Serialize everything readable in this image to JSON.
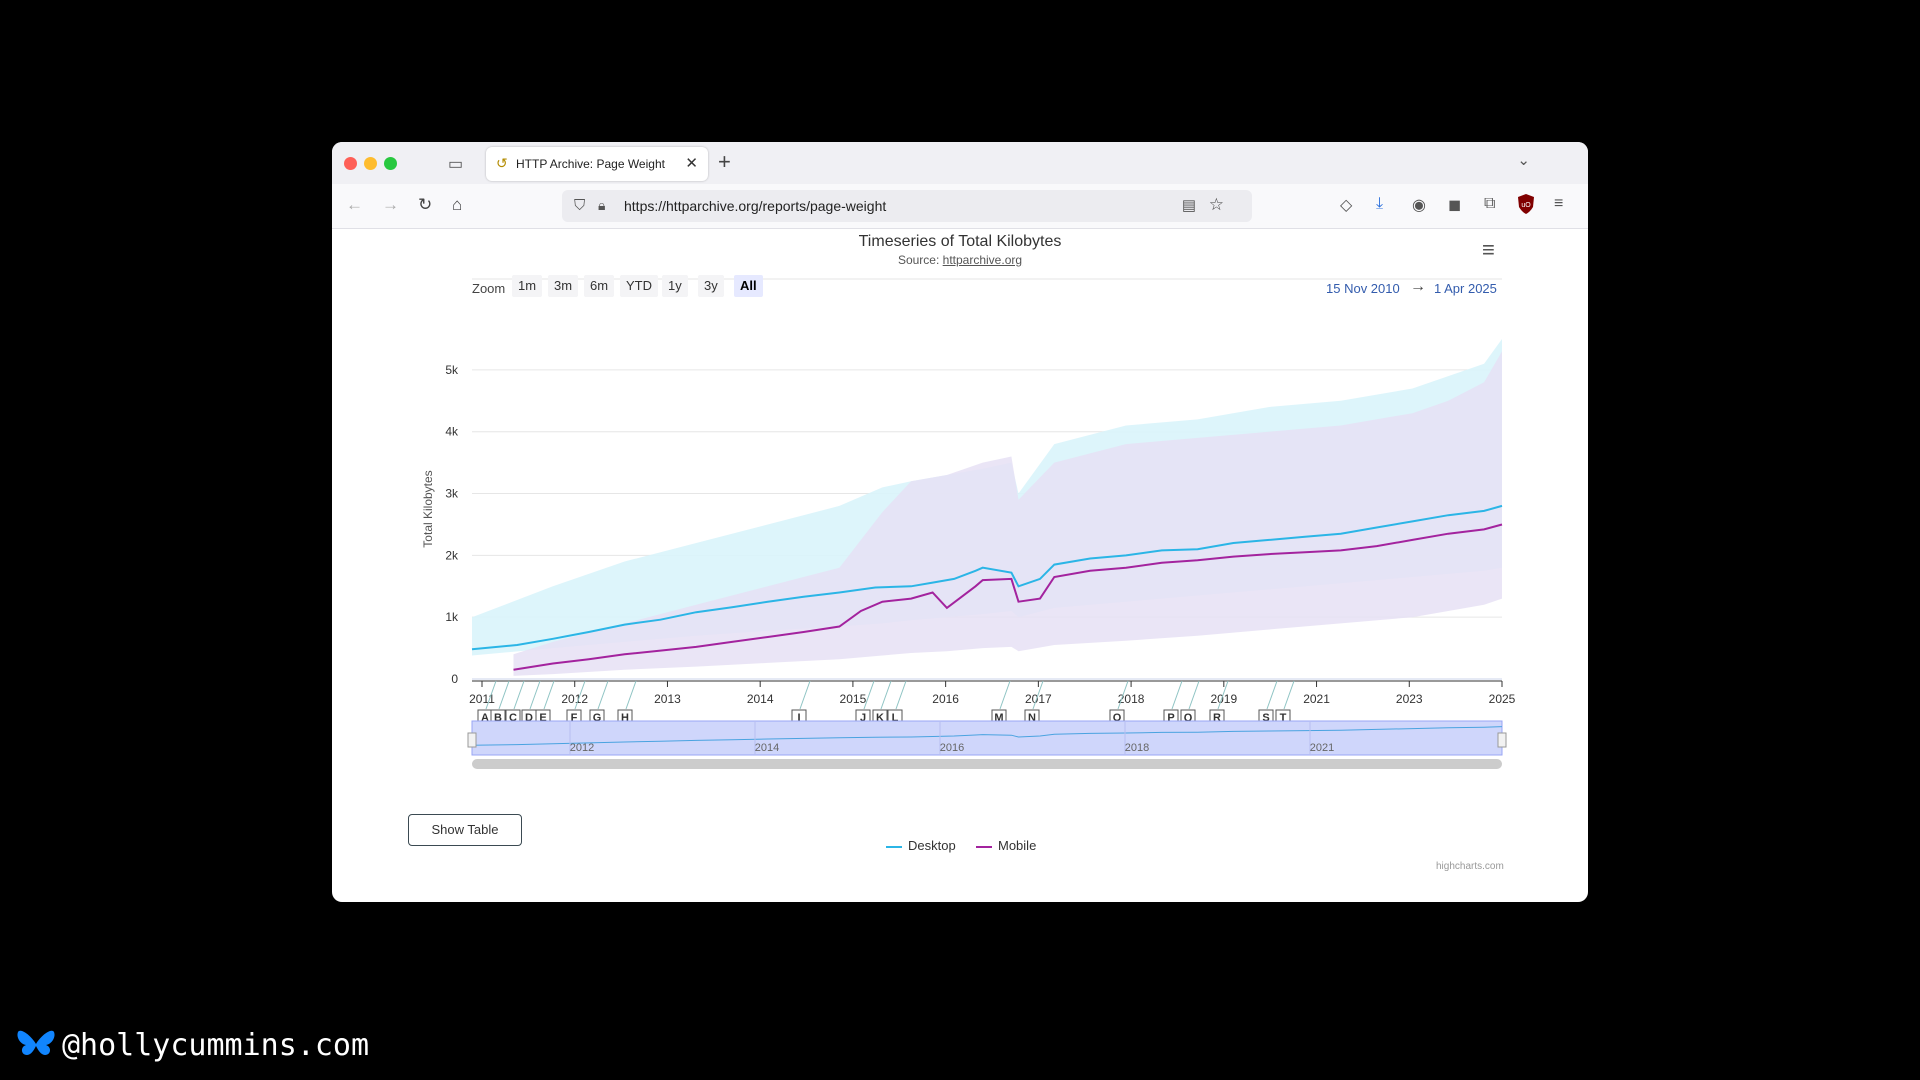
{
  "browser": {
    "tab_title": "HTTP Archive: Page Weight",
    "tab_close": "✕",
    "new_tab": "+",
    "url": "https://httparchive.org/reports/page-weight",
    "extension_badge": "uO"
  },
  "chart_header": {
    "title": "Timeseries of Total Kilobytes",
    "source_prefix": "Source: ",
    "source_link": "httparchive.org"
  },
  "zoom": {
    "label": "Zoom",
    "buttons": [
      "1m",
      "3m",
      "6m",
      "YTD",
      "1y",
      "3y",
      "All"
    ],
    "active": "All"
  },
  "range": {
    "from": "15 Nov 2010",
    "arrow": "→",
    "to": "1 Apr 2025"
  },
  "chart_data": {
    "type": "line",
    "ylabel": "Total Kilobytes",
    "ylim": [
      0,
      5500
    ],
    "y_ticks": [
      "0",
      "1k",
      "2k",
      "3k",
      "4k",
      "5k"
    ],
    "x_ticks": [
      "2011",
      "2012",
      "2013",
      "2014",
      "2015",
      "2016",
      "2017",
      "2018",
      "2019",
      "2021",
      "2023",
      "2025"
    ],
    "annotations": [
      "A",
      "B",
      "C",
      "D",
      "E",
      "F",
      "G",
      "H",
      "I",
      "J",
      "K",
      "L",
      "M",
      "N",
      "O",
      "P",
      "Q",
      "R",
      "S",
      "T"
    ],
    "navigator_ticks": [
      "2012",
      "2014",
      "2016",
      "2018",
      "2021"
    ],
    "series": [
      {
        "name": "Desktop",
        "color": "#2bb5e6",
        "x": [
          2010.87,
          2011.5,
          2012.0,
          2012.5,
          2013.0,
          2013.5,
          2014.0,
          2014.5,
          2015.0,
          2015.5,
          2016.0,
          2016.5,
          2017.0,
          2017.3,
          2017.6,
          2017.9,
          2018.0,
          2018.4,
          2018.5,
          2018.8,
          2019.0,
          2019.5,
          2020.0,
          2020.5,
          2021.0,
          2021.5,
          2022.0,
          2022.5,
          2023.0,
          2023.5,
          2024.0,
          2024.5,
          2025.0,
          2025.25
        ],
        "y": [
          480,
          550,
          650,
          760,
          880,
          960,
          1080,
          1160,
          1250,
          1330,
          1400,
          1480,
          1500,
          1560,
          1620,
          1750,
          1800,
          1720,
          1500,
          1620,
          1850,
          1950,
          2000,
          2080,
          2100,
          2200,
          2250,
          2300,
          2350,
          2450,
          2550,
          2650,
          2720,
          2800
        ]
      },
      {
        "name": "Mobile",
        "color": "#a3239e",
        "x": [
          2011.45,
          2012.0,
          2012.5,
          2013.0,
          2013.5,
          2014.0,
          2014.5,
          2015.0,
          2015.5,
          2016.0,
          2016.3,
          2016.6,
          2017.0,
          2017.3,
          2017.5,
          2017.9,
          2018.0,
          2018.4,
          2018.5,
          2018.8,
          2019.0,
          2019.5,
          2020.0,
          2020.5,
          2021.0,
          2021.5,
          2022.0,
          2022.5,
          2023.0,
          2023.5,
          2024.0,
          2024.5,
          2025.0,
          2025.25
        ],
        "y": [
          150,
          250,
          320,
          400,
          460,
          520,
          600,
          680,
          760,
          850,
          1100,
          1250,
          1300,
          1400,
          1150,
          1500,
          1600,
          1620,
          1250,
          1300,
          1650,
          1750,
          1800,
          1880,
          1920,
          1980,
          2020,
          2050,
          2080,
          2150,
          2250,
          2350,
          2420,
          2500
        ]
      }
    ],
    "bands": [
      {
        "name": "Desktop range",
        "color": "#d9f4fb",
        "x": [
          2010.87,
          2012.0,
          2013.0,
          2014.0,
          2015.0,
          2016.0,
          2016.6,
          2017.0,
          2017.5,
          2018.0,
          2018.4,
          2018.5,
          2019.0,
          2020.0,
          2021.0,
          2022.0,
          2023.0,
          2024.0,
          2024.5,
          2025.0,
          2025.25
        ],
        "low": [
          380,
          500,
          600,
          700,
          780,
          850,
          900,
          950,
          1000,
          1050,
          1100,
          1000,
          1150,
          1250,
          1350,
          1450,
          1550,
          1650,
          1700,
          1750,
          1800
        ],
        "high": [
          1000,
          1500,
          1900,
          2200,
          2500,
          2800,
          3100,
          3200,
          3300,
          3400,
          3500,
          3000,
          3800,
          4100,
          4200,
          4400,
          4500,
          4700,
          4900,
          5100,
          5500
        ]
      },
      {
        "name": "Mobile range",
        "color": "#e6e0f4",
        "x": [
          2011.45,
          2012.0,
          2013.0,
          2014.0,
          2015.0,
          2016.0,
          2016.6,
          2017.0,
          2017.5,
          2018.0,
          2018.4,
          2018.5,
          2019.0,
          2020.0,
          2021.0,
          2022.0,
          2023.0,
          2024.0,
          2024.5,
          2025.0,
          2025.25
        ],
        "low": [
          50,
          80,
          150,
          200,
          260,
          320,
          380,
          420,
          450,
          500,
          520,
          450,
          550,
          620,
          700,
          800,
          900,
          1000,
          1100,
          1200,
          1300
        ],
        "high": [
          400,
          600,
          900,
          1200,
          1500,
          1800,
          2700,
          3200,
          3300,
          3500,
          3600,
          2900,
          3500,
          3800,
          3900,
          4000,
          4100,
          4300,
          4500,
          4800,
          5300
        ]
      }
    ]
  },
  "legend": {
    "desktop": "Desktop",
    "mobile": "Mobile"
  },
  "credits": "highcharts.com",
  "show_table": "Show Table",
  "footer": {
    "handle": "@hollycummins.com"
  }
}
